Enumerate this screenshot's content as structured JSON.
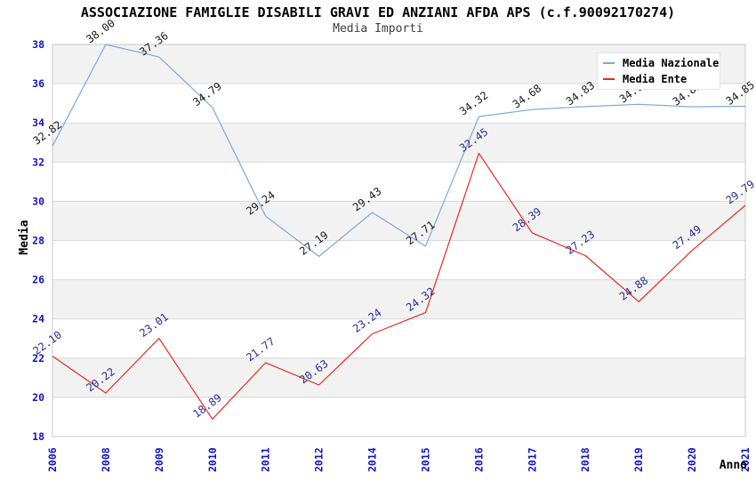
{
  "chart_data": {
    "type": "line",
    "title": "ASSOCIAZIONE FAMIGLIE DISABILI GRAVI ED ANZIANI AFDA APS (c.f.90092170274)",
    "subtitle": "Media Importi",
    "xlabel": "Anno",
    "ylabel": "Media",
    "ylim": [
      18,
      38
    ],
    "ytick_step": 2,
    "grid": true,
    "legend_position": "top-right",
    "categories": [
      "2006",
      "2008",
      "2009",
      "2010",
      "2011",
      "2012",
      "2014",
      "2015",
      "2016",
      "2017",
      "2018",
      "2019",
      "2020",
      "2021"
    ],
    "series": [
      {
        "name": "Media Nazionale",
        "color": "#7da8d8",
        "label_color": "#1a1a1a",
        "values": [
          32.82,
          38.0,
          37.36,
          34.79,
          29.24,
          27.19,
          29.43,
          27.71,
          34.32,
          34.68,
          34.83,
          34.95,
          34.82,
          34.85
        ]
      },
      {
        "name": "Media Ente",
        "color": "#e8281e",
        "label_color": "#2a2a99",
        "values": [
          22.1,
          20.22,
          23.01,
          18.89,
          21.77,
          20.63,
          23.24,
          24.32,
          32.45,
          28.39,
          27.23,
          24.88,
          27.49,
          29.79
        ]
      }
    ],
    "styles": {
      "tick_label_color": "#1212cc",
      "band_fill": "#f2f2f2",
      "gridline_color": "#d9d9d9",
      "plot_border_color": "#c8c8c8",
      "axis_title_color": "#000000"
    }
  }
}
